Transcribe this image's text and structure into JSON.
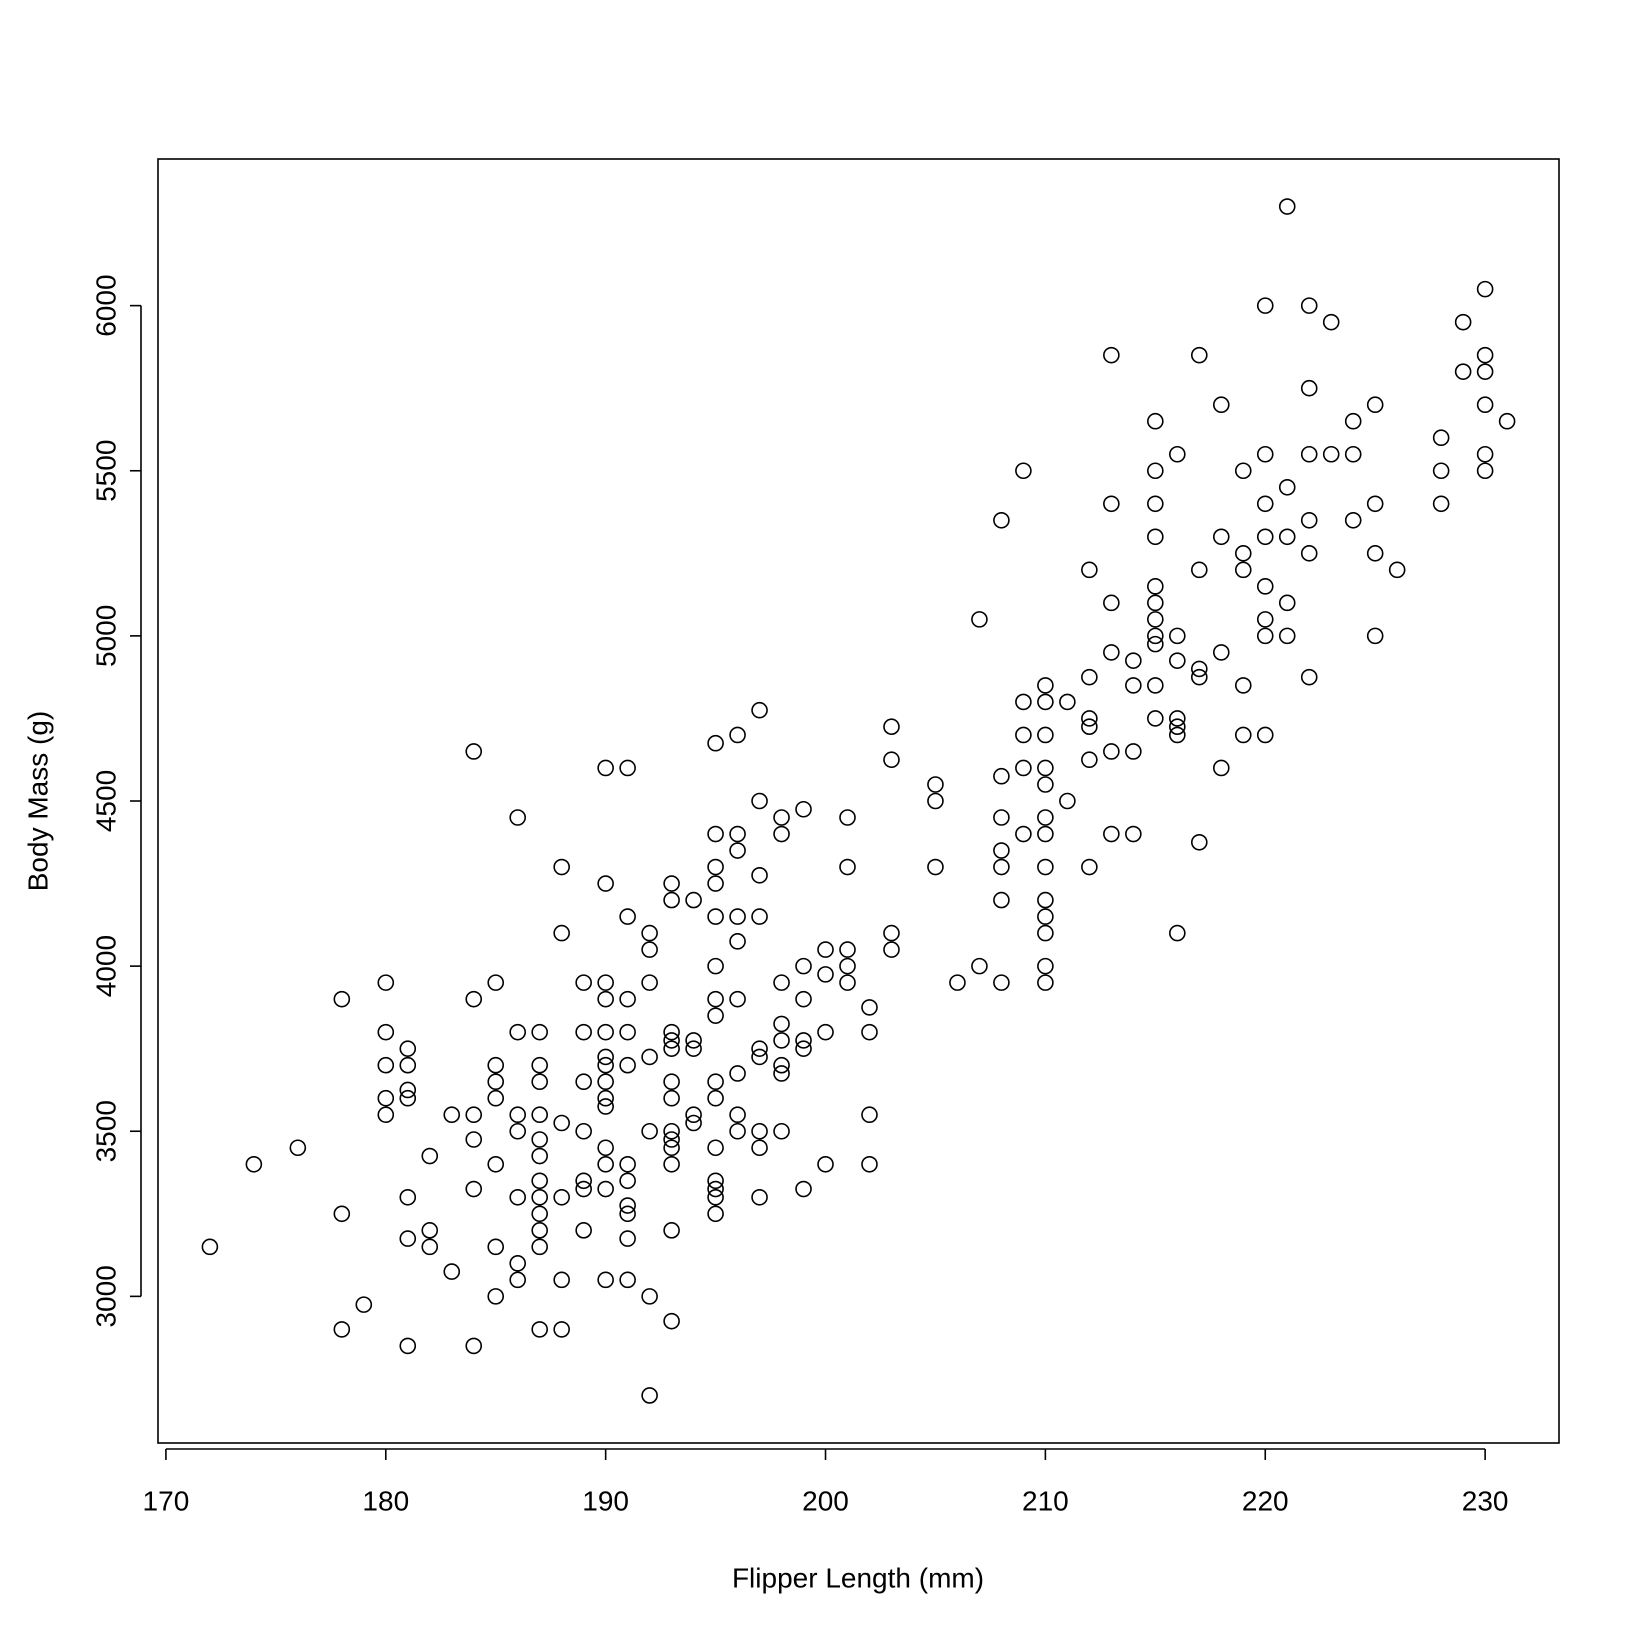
{
  "chart_data": {
    "type": "scatter",
    "x_label": "Flipper Length (mm)",
    "y_label": "Body Mass (g)",
    "color": "#000000",
    "marker": "open-circle",
    "grid": false,
    "xlim": [
      169.64,
      233.36
    ],
    "ylim": [
      2556,
      6444
    ],
    "xticks": [
      170,
      180,
      190,
      200,
      210,
      220,
      230
    ],
    "yticks": [
      3000,
      3500,
      4000,
      4500,
      5000,
      5500,
      6000
    ],
    "x": [
      172,
      174,
      176,
      178,
      178,
      178,
      179,
      180,
      180,
      180,
      180,
      180,
      181,
      181,
      181,
      181,
      181,
      181,
      181,
      182,
      182,
      182,
      183,
      183,
      184,
      184,
      184,
      184,
      184,
      184,
      185,
      185,
      185,
      185,
      185,
      185,
      185,
      186,
      186,
      186,
      186,
      186,
      186,
      186,
      187,
      187,
      187,
      187,
      187,
      187,
      187,
      187,
      187,
      187,
      187,
      187,
      188,
      188,
      188,
      188,
      188,
      188,
      189,
      189,
      189,
      189,
      189,
      189,
      189,
      190,
      190,
      190,
      190,
      190,
      190,
      190,
      190,
      190,
      190,
      190,
      190,
      190,
      190,
      191,
      191,
      191,
      191,
      191,
      191,
      191,
      191,
      191,
      191,
      191,
      192,
      192,
      192,
      192,
      192,
      192,
      192,
      193,
      193,
      193,
      193,
      193,
      193,
      193,
      193,
      193,
      193,
      193,
      193,
      193,
      194,
      194,
      194,
      194,
      194,
      195,
      195,
      195,
      195,
      195,
      195,
      195,
      195,
      195,
      195,
      195,
      195,
      195,
      195,
      195,
      196,
      196,
      196,
      196,
      196,
      196,
      196,
      196,
      196,
      197,
      197,
      197,
      197,
      197,
      197,
      197,
      197,
      197,
      198,
      198,
      198,
      198,
      198,
      198,
      198,
      198,
      199,
      199,
      199,
      199,
      199,
      199,
      200,
      200,
      200,
      200,
      201,
      201,
      201,
      201,
      201,
      202,
      202,
      202,
      202,
      203,
      203,
      203,
      203,
      205,
      205,
      205,
      206,
      207,
      207,
      208,
      208,
      208,
      208,
      208,
      208,
      208,
      209,
      209,
      209,
      209,
      209,
      210,
      210,
      210,
      210,
      210,
      210,
      210,
      210,
      210,
      210,
      210,
      210,
      210,
      211,
      211,
      212,
      212,
      212,
      212,
      212,
      212,
      213,
      213,
      213,
      213,
      213,
      213,
      214,
      214,
      214,
      214,
      215,
      215,
      215,
      215,
      215,
      215,
      215,
      215,
      215,
      215,
      215,
      216,
      216,
      216,
      216,
      216,
      216,
      216,
      217,
      217,
      217,
      217,
      217,
      218,
      218,
      218,
      218,
      219,
      219,
      219,
      219,
      219,
      220,
      220,
      220,
      220,
      220,
      220,
      220,
      220,
      221,
      221,
      221,
      221,
      221,
      222,
      222,
      222,
      222,
      222,
      222,
      223,
      223,
      224,
      224,
      224,
      225,
      225,
      225,
      225,
      226,
      228,
      228,
      228,
      229,
      229,
      230,
      230,
      230,
      230,
      230,
      230,
      231
    ],
    "values": [
      3150,
      3400,
      3450,
      3900,
      3250,
      2900,
      2975,
      3950,
      3800,
      3700,
      3600,
      3550,
      3750,
      3700,
      3625,
      3600,
      3300,
      3175,
      2850,
      3425,
      3200,
      3150,
      3550,
      3075,
      4650,
      3900,
      3550,
      3475,
      3325,
      2850,
      3950,
      3700,
      3650,
      3600,
      3400,
      3150,
      3000,
      4450,
      3800,
      3550,
      3500,
      3300,
      3100,
      3050,
      3800,
      3700,
      3650,
      3550,
      3475,
      3425,
      3350,
      3300,
      3250,
      3200,
      3150,
      2900,
      4300,
      4100,
      3525,
      3300,
      3050,
      2900,
      3950,
      3800,
      3650,
      3500,
      3350,
      3325,
      3200,
      4600,
      4250,
      3950,
      3900,
      3800,
      3725,
      3700,
      3650,
      3600,
      3575,
      3450,
      3400,
      3325,
      3050,
      4600,
      4150,
      3900,
      3800,
      3700,
      3400,
      3350,
      3275,
      3250,
      3175,
      3050,
      4100,
      4050,
      3950,
      3725,
      3500,
      3000,
      2700,
      4250,
      4200,
      3800,
      3775,
      3750,
      3650,
      3600,
      3500,
      3475,
      3450,
      3400,
      3200,
      2925,
      4200,
      3775,
      3750,
      3550,
      3525,
      4675,
      4400,
      4300,
      4250,
      4150,
      4000,
      3900,
      3850,
      3650,
      3600,
      3450,
      3350,
      3325,
      3300,
      3250,
      4700,
      4400,
      4350,
      4150,
      4075,
      3900,
      3675,
      3550,
      3500,
      4775,
      4500,
      4275,
      4150,
      3750,
      3725,
      3500,
      3450,
      3300,
      4450,
      4400,
      3950,
      3825,
      3775,
      3700,
      3675,
      3500,
      4475,
      4000,
      3900,
      3775,
      3750,
      3325,
      4050,
      3975,
      3800,
      3400,
      4450,
      4300,
      4050,
      4000,
      3950,
      3875,
      3800,
      3550,
      3400,
      4725,
      4625,
      4100,
      4050,
      4550,
      4500,
      4300,
      3950,
      5050,
      4000,
      5350,
      4575,
      4450,
      4350,
      4300,
      4200,
      3950,
      5500,
      4800,
      4700,
      4600,
      4400,
      4850,
      4800,
      4700,
      4600,
      4550,
      4450,
      4400,
      4300,
      4200,
      4150,
      4100,
      4000,
      3950,
      4800,
      4500,
      5200,
      4875,
      4750,
      4725,
      4625,
      4300,
      5850,
      5400,
      5100,
      4950,
      4650,
      4400,
      4925,
      4850,
      4650,
      4400,
      5650,
      5500,
      5400,
      5300,
      5150,
      5100,
      5050,
      5000,
      4975,
      4850,
      4750,
      5550,
      5000,
      4925,
      4750,
      4725,
      4700,
      4100,
      5850,
      5200,
      4900,
      4875,
      4375,
      5700,
      5300,
      4950,
      4600,
      5500,
      5250,
      5200,
      4850,
      4700,
      6000,
      5550,
      5400,
      5300,
      5150,
      5050,
      5000,
      4700,
      6300,
      5450,
      5300,
      5100,
      5000,
      6000,
      5750,
      5550,
      5350,
      5250,
      4875,
      5950,
      5550,
      5650,
      5550,
      5350,
      5700,
      5400,
      5250,
      5000,
      5200,
      5600,
      5500,
      5400,
      5950,
      5800,
      6050,
      5850,
      5800,
      5700,
      5550,
      5500,
      5650
    ]
  }
}
